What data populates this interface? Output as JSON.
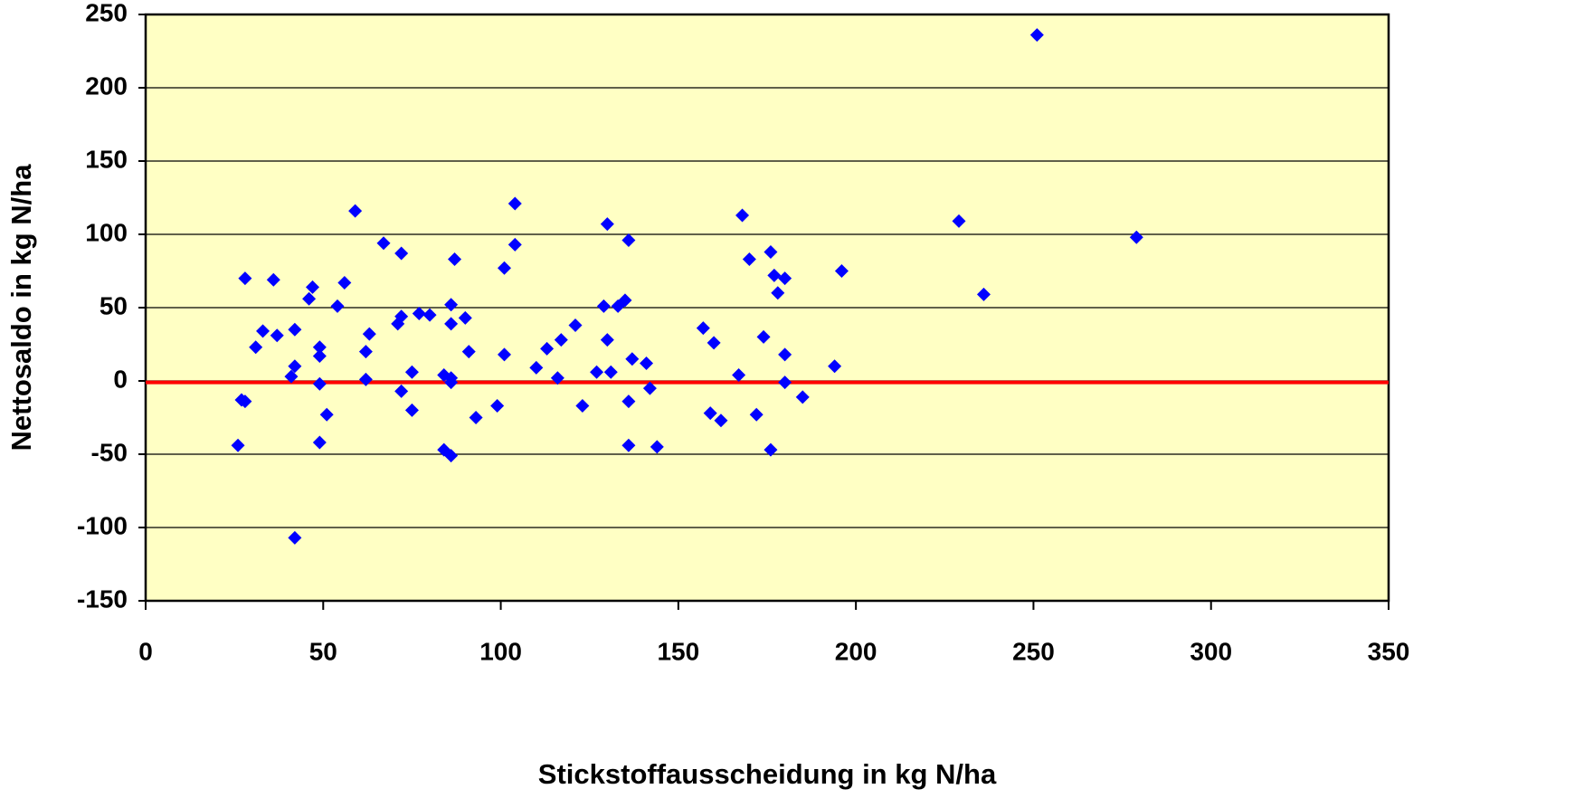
{
  "chart_data": {
    "type": "scatter",
    "x_label": "Stickstoffausscheidung in kg N/ha",
    "y_label": "Nettosaldo in kg N/ha",
    "xlim": [
      0,
      350
    ],
    "xticks": [
      0,
      50,
      100,
      150,
      200,
      250,
      300,
      350
    ],
    "ylim": [
      -150,
      250
    ],
    "yticks": [
      -150,
      -100,
      -50,
      0,
      50,
      100,
      150,
      200,
      250
    ],
    "grid": true,
    "color": "#0000ff",
    "background": "#ffffc4",
    "reference_line": {
      "value": -1,
      "color": "#ff0000"
    },
    "x": [
      26,
      27,
      28,
      28,
      31,
      33,
      36,
      37,
      41,
      42,
      42,
      42,
      46,
      47,
      49,
      49,
      49,
      49,
      51,
      54,
      56,
      59,
      62,
      62,
      63,
      67,
      71,
      72,
      72,
      72,
      75,
      75,
      77,
      80,
      84,
      84,
      86,
      86,
      86,
      86,
      86,
      87,
      90,
      91,
      93,
      99,
      101,
      101,
      104,
      104,
      110,
      113,
      116,
      117,
      121,
      123,
      127,
      129,
      130,
      130,
      131,
      133,
      135,
      136,
      136,
      136,
      137,
      141,
      142,
      144,
      157,
      159,
      160,
      162,
      167,
      168,
      170,
      172,
      174,
      176,
      176,
      177,
      178,
      180,
      180,
      180,
      185,
      194,
      196,
      229,
      236,
      251,
      279
    ],
    "values": [
      -44,
      -13,
      -14,
      70,
      23,
      34,
      69,
      31,
      3,
      35,
      10,
      -107,
      56,
      64,
      -2,
      17,
      23,
      -42,
      -23,
      51,
      67,
      116,
      20,
      1,
      32,
      94,
      39,
      87,
      44,
      -7,
      -20,
      6,
      46,
      45,
      4,
      -47,
      2,
      -1,
      39,
      52,
      -51,
      83,
      43,
      20,
      -25,
      -17,
      18,
      77,
      93,
      121,
      9,
      22,
      2,
      28,
      38,
      -17,
      6,
      51,
      107,
      28,
      6,
      51,
      55,
      96,
      -14,
      -44,
      15,
      12,
      -5,
      -45,
      36,
      -22,
      26,
      -27,
      4,
      113,
      83,
      -23,
      30,
      88,
      -47,
      72,
      60,
      70,
      18,
      -1,
      -11,
      10,
      75,
      109,
      59,
      236,
      98
    ]
  }
}
